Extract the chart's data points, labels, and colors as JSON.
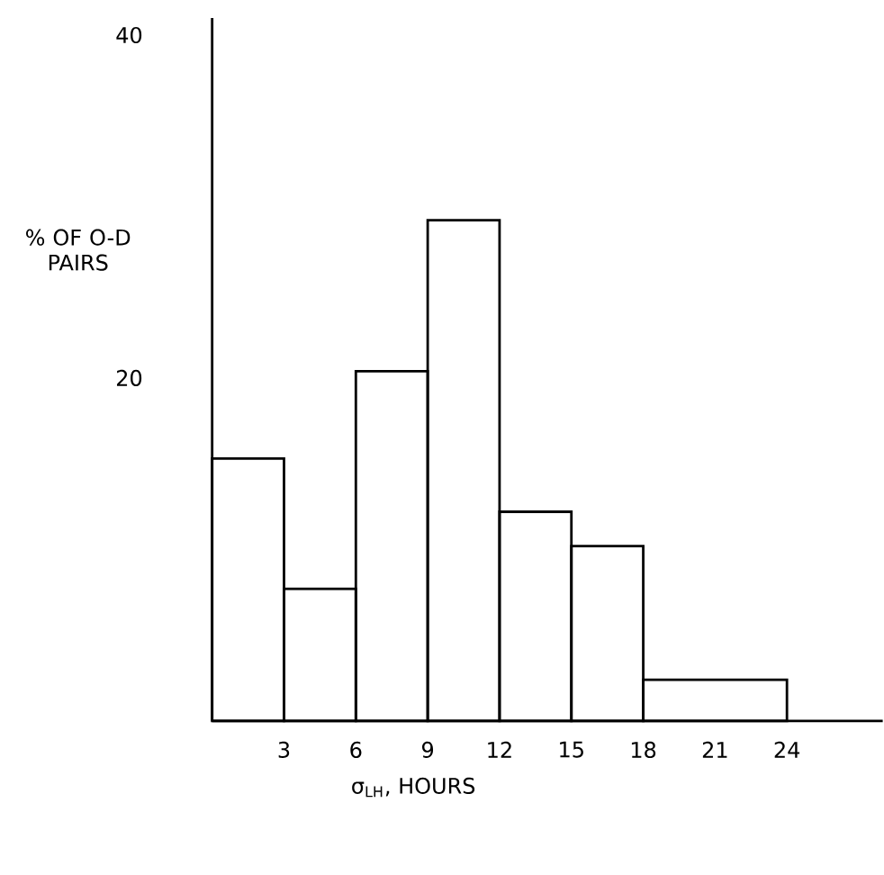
{
  "chart_data": {
    "type": "histogram",
    "xlabel": "σ$_{LH}$, HOURS",
    "ylabel": "% OF O-D PAIRS",
    "bins": [
      0,
      3,
      6,
      9,
      12,
      15,
      18,
      24
    ],
    "values": [
      15.3,
      7.7,
      20.4,
      29.2,
      12.2,
      10.2,
      2.4
    ],
    "color": "#000000",
    "xlim": [
      0,
      28
    ],
    "ylim": [
      0,
      41
    ],
    "xticks": [
      3,
      6,
      9,
      12,
      15,
      18,
      21,
      24
    ],
    "yticks": [
      20,
      40
    ]
  }
}
